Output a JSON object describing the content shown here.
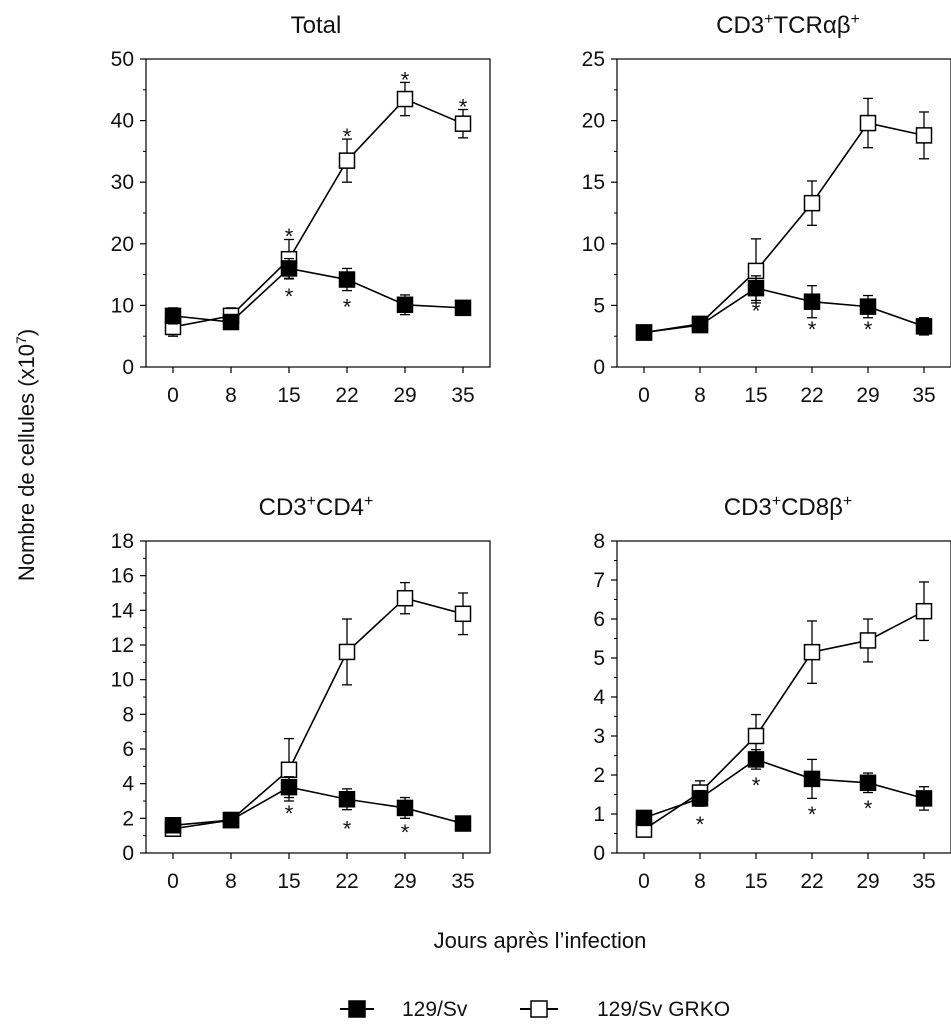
{
  "figure": {
    "ylabel": "Nombre de cellules (x10",
    "ylabel_sup": "7",
    "ylabel_end": ")",
    "xlabel": "Jours après l’infection",
    "legend": [
      {
        "label": "129/Sv",
        "fill": "#000000"
      },
      {
        "label": "129/Sv GRKO",
        "fill": "#ffffff"
      }
    ]
  },
  "chart_data": [
    {
      "type": "line",
      "title": "Total",
      "title_parts": [
        {
          "t": "Total"
        }
      ],
      "categories": [
        "0",
        "8",
        "15",
        "22",
        "29",
        "35"
      ],
      "ylim": [
        0,
        50
      ],
      "yticks": [
        0,
        10,
        20,
        30,
        40,
        50
      ],
      "series": [
        {
          "name": "129/Sv",
          "values": [
            8.3,
            7.3,
            16.0,
            14.2,
            10.1,
            9.6
          ],
          "errors": [
            1.3,
            1.0,
            1.6,
            1.8,
            1.6,
            1.2
          ],
          "fill": "#000000"
        },
        {
          "name": "129/Sv GRKO",
          "values": [
            6.5,
            8.3,
            17.5,
            33.5,
            43.5,
            39.5
          ],
          "errors": [
            1.5,
            1.3,
            3.2,
            3.5,
            2.7,
            2.3
          ],
          "fill": "#ffffff"
        }
      ],
      "annotations": [
        {
          "x": "15",
          "y": 21.3,
          "text": "*"
        },
        {
          "x": "15",
          "y": 11.5,
          "text": "*"
        },
        {
          "x": "22",
          "y": 37.5,
          "text": "*"
        },
        {
          "x": "22",
          "y": 9.8,
          "text": "*"
        },
        {
          "x": "29",
          "y": 46.7,
          "text": "*"
        },
        {
          "x": "35",
          "y": 42.3,
          "text": "*"
        }
      ]
    },
    {
      "type": "line",
      "title": "CD3+TCRαβ+",
      "title_parts": [
        {
          "t": "CD3"
        },
        {
          "t": "+",
          "sup": true
        },
        {
          "t": "TCRαβ"
        },
        {
          "t": "+",
          "sup": true
        }
      ],
      "categories": [
        "0",
        "8",
        "15",
        "22",
        "29",
        "35"
      ],
      "ylim": [
        0,
        25
      ],
      "yticks": [
        0,
        5,
        10,
        15,
        20,
        25
      ],
      "series": [
        {
          "name": "129/Sv",
          "values": [
            2.8,
            3.4,
            6.4,
            5.3,
            4.9,
            3.3
          ],
          "errors": [
            0.3,
            0.5,
            1.0,
            1.3,
            0.9,
            0.7
          ],
          "fill": "#000000"
        },
        {
          "name": "129/Sv GRKO",
          "values": [
            2.8,
            3.5,
            7.8,
            13.3,
            19.8,
            18.8
          ],
          "errors": [
            0.3,
            0.5,
            2.6,
            1.8,
            2.0,
            1.9
          ],
          "fill": "#ffffff"
        }
      ],
      "annotations": [
        {
          "x": "15",
          "y": 4.6,
          "text": "*"
        },
        {
          "x": "22",
          "y": 3.1,
          "text": "*"
        },
        {
          "x": "29",
          "y": 3.1,
          "text": "*"
        }
      ]
    },
    {
      "type": "line",
      "title": "CD3+CD4+",
      "title_parts": [
        {
          "t": "CD3"
        },
        {
          "t": "+",
          "sup": true
        },
        {
          "t": "CD4"
        },
        {
          "t": "+",
          "sup": true
        }
      ],
      "categories": [
        "0",
        "8",
        "15",
        "22",
        "29",
        "35"
      ],
      "ylim": [
        0,
        18
      ],
      "yticks": [
        0,
        2,
        4,
        6,
        8,
        10,
        12,
        14,
        16,
        18
      ],
      "series": [
        {
          "name": "129/Sv",
          "values": [
            1.6,
            1.9,
            3.8,
            3.1,
            2.6,
            1.7
          ],
          "errors": [
            0.3,
            0.3,
            0.6,
            0.6,
            0.6,
            0.3
          ],
          "fill": "#000000"
        },
        {
          "name": "129/Sv GRKO",
          "values": [
            1.4,
            1.9,
            4.8,
            11.6,
            14.7,
            13.8
          ],
          "errors": [
            0.3,
            0.3,
            1.8,
            1.9,
            0.9,
            1.2
          ],
          "fill": "#ffffff"
        }
      ],
      "annotations": [
        {
          "x": "15",
          "y": 2.3,
          "text": "*"
        },
        {
          "x": "22",
          "y": 1.4,
          "text": "*"
        },
        {
          "x": "29",
          "y": 1.2,
          "text": "*"
        }
      ]
    },
    {
      "type": "line",
      "title": "CD3+CD8β+",
      "title_parts": [
        {
          "t": "CD3"
        },
        {
          "t": "+",
          "sup": true
        },
        {
          "t": "CD8β"
        },
        {
          "t": "+",
          "sup": true
        }
      ],
      "categories": [
        "0",
        "8",
        "15",
        "22",
        "29",
        "35"
      ],
      "ylim": [
        0,
        8
      ],
      "yticks": [
        0,
        1,
        2,
        3,
        4,
        5,
        6,
        7,
        8
      ],
      "series": [
        {
          "name": "129/Sv",
          "values": [
            0.9,
            1.4,
            2.4,
            1.9,
            1.8,
            1.4
          ],
          "errors": [
            0.15,
            0.2,
            0.25,
            0.5,
            0.25,
            0.3
          ],
          "fill": "#000000"
        },
        {
          "name": "129/Sv GRKO",
          "values": [
            0.6,
            1.55,
            3.0,
            5.15,
            5.45,
            6.2
          ],
          "errors": [
            0.15,
            0.3,
            0.55,
            0.8,
            0.55,
            0.75
          ],
          "fill": "#ffffff"
        }
      ],
      "annotations": [
        {
          "x": "8",
          "y": 0.75,
          "text": "*"
        },
        {
          "x": "15",
          "y": 1.75,
          "text": "*"
        },
        {
          "x": "22",
          "y": 1.0,
          "text": "*"
        },
        {
          "x": "29",
          "y": 1.15,
          "text": "*"
        }
      ]
    }
  ]
}
